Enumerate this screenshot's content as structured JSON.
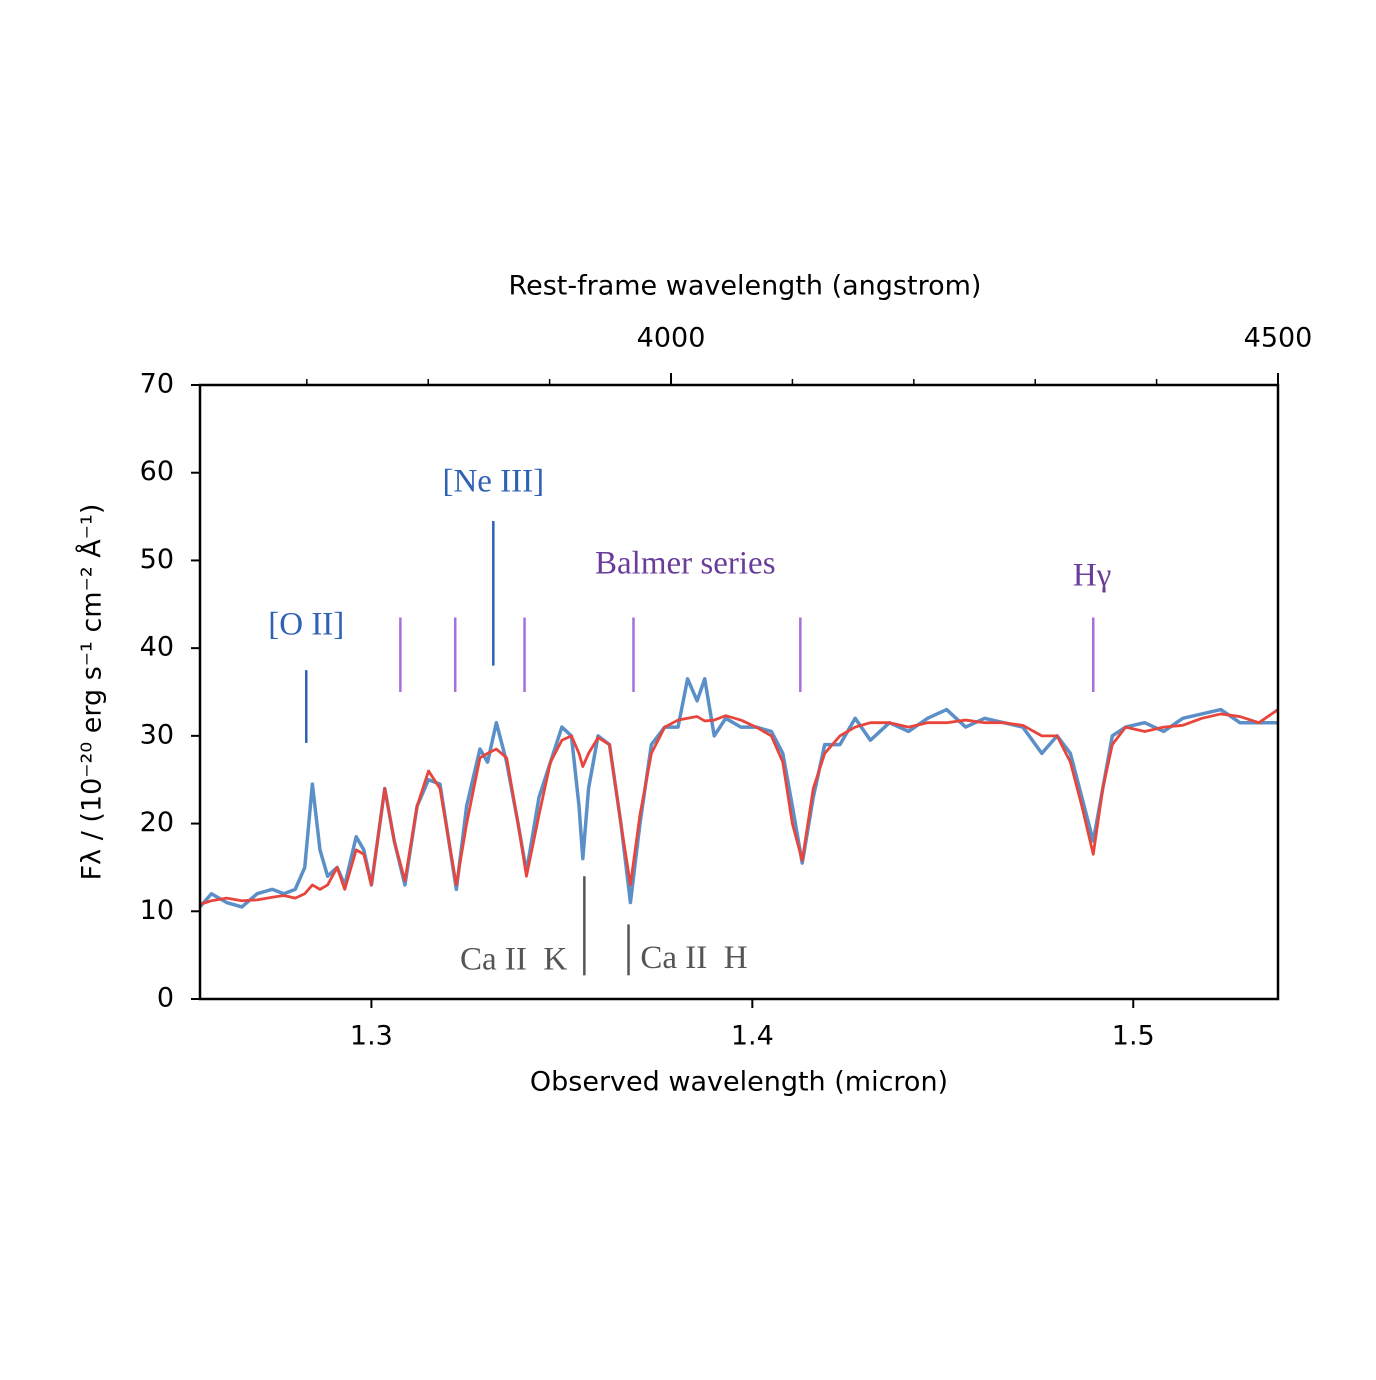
{
  "chart_data": {
    "type": "line",
    "xlabel": "Observed wavelength (micron)",
    "ylabel": "Fλ / (10⁻²⁰ erg s⁻¹ cm⁻² Å⁻¹)",
    "x2label": "Rest-frame wavelength (angstrom)",
    "xlim": [
      1.255,
      1.538
    ],
    "xticks": [
      1.3,
      1.4,
      1.5
    ],
    "ylim": [
      0,
      70
    ],
    "yticks": [
      0,
      10,
      20,
      30,
      40,
      50,
      60,
      70
    ],
    "x2lim": [
      3612,
      4500
    ],
    "x2ticks": [
      4000,
      4500
    ],
    "x2minorticks": [
      3700,
      3800,
      3900,
      4100,
      4200,
      4300,
      4400
    ],
    "x": [
      1.255,
      1.258,
      1.262,
      1.266,
      1.27,
      1.274,
      1.277,
      1.28,
      1.2825,
      1.2845,
      1.2865,
      1.2885,
      1.291,
      1.293,
      1.296,
      1.298,
      1.3,
      1.3035,
      1.306,
      1.3088,
      1.312,
      1.315,
      1.318,
      1.3223,
      1.325,
      1.3285,
      1.3305,
      1.3328,
      1.3355,
      1.3385,
      1.3407,
      1.344,
      1.347,
      1.35,
      1.3525,
      1.3545,
      1.3555,
      1.357,
      1.3595,
      1.3625,
      1.3655,
      1.368,
      1.3705,
      1.3735,
      1.377,
      1.3805,
      1.383,
      1.3855,
      1.3875,
      1.39,
      1.393,
      1.397,
      1.401,
      1.405,
      1.408,
      1.4105,
      1.4131,
      1.416,
      1.419,
      1.423,
      1.427,
      1.431,
      1.436,
      1.441,
      1.446,
      1.451,
      1.456,
      1.461,
      1.466,
      1.471,
      1.476,
      1.48,
      1.4835,
      1.4865,
      1.4895,
      1.492,
      1.4945,
      1.498,
      1.503,
      1.508,
      1.513,
      1.518,
      1.523,
      1.528,
      1.533,
      1.538
    ],
    "series": [
      {
        "color": "#5b8fc7",
        "values": [
          10.5,
          12,
          11,
          10.5,
          12,
          12.5,
          12,
          12.5,
          15,
          24.5,
          17,
          14,
          15,
          13,
          18.5,
          17,
          13,
          24,
          18,
          13,
          22,
          25,
          24.5,
          12.5,
          22,
          28.5,
          27,
          31.5,
          27,
          20,
          14.5,
          23,
          27,
          31,
          30,
          22,
          16,
          24,
          30,
          29,
          20,
          11,
          20,
          29,
          31,
          31,
          36.5,
          34,
          36.5,
          30,
          32,
          31,
          31,
          30.5,
          28,
          22,
          15.5,
          23,
          29,
          29,
          32,
          29.5,
          31.5,
          30.5,
          32,
          33,
          31,
          32,
          31.5,
          31,
          28,
          30,
          28,
          23,
          18,
          24,
          30,
          31,
          31.5,
          30.5,
          32,
          32.5,
          33,
          31.5,
          31.5,
          31.5
        ]
      },
      {
        "color": "#e8453c",
        "values": [
          10.8,
          11.2,
          11.5,
          11.2,
          11.3,
          11.6,
          11.8,
          11.5,
          12,
          13,
          12.5,
          13,
          15,
          12.5,
          17,
          16.5,
          13,
          24,
          18,
          13.5,
          22,
          26,
          24,
          13,
          20,
          27.5,
          28,
          28.5,
          27.5,
          20,
          14,
          21,
          27,
          29.5,
          30,
          28,
          26.5,
          28,
          29.8,
          29,
          20,
          13,
          21,
          28,
          31,
          31.8,
          32,
          32.2,
          31.7,
          31.8,
          32.3,
          31.8,
          31,
          30,
          27,
          20,
          15.8,
          24,
          28,
          30,
          31,
          31.5,
          31.5,
          31,
          31.5,
          31.5,
          31.8,
          31.5,
          31.5,
          31.2,
          30,
          30,
          27,
          22,
          16.5,
          24,
          29,
          31,
          30.5,
          31,
          31.2,
          32,
          32.5,
          32.2,
          31.5,
          33
        ]
      }
    ],
    "markers": [
      {
        "x": 1.2829,
        "y": [
          29.2,
          37.5
        ],
        "color": "#2f62b5"
      },
      {
        "x": 1.332,
        "y": [
          38,
          54.5
        ],
        "color": "#2f62b5"
      },
      {
        "x": 1.3076,
        "y": [
          35,
          43.5
        ],
        "color": "#a570dd"
      },
      {
        "x": 1.322,
        "y": [
          35,
          43.5
        ],
        "color": "#a570dd"
      },
      {
        "x": 1.3402,
        "y": [
          35,
          43.5
        ],
        "color": "#a570dd"
      },
      {
        "x": 1.3688,
        "y": [
          35,
          43.5
        ],
        "color": "#a570dd"
      },
      {
        "x": 1.4126,
        "y": [
          35,
          43.5
        ],
        "color": "#a570dd"
      },
      {
        "x": 1.4895,
        "y": [
          35,
          43.5
        ],
        "color": "#a570dd"
      },
      {
        "x": 1.3559,
        "y": [
          2.7,
          14
        ],
        "color": "#555555"
      },
      {
        "x": 1.3675,
        "y": [
          2.7,
          8.5
        ],
        "color": "#555555"
      }
    ],
    "annotations": [
      {
        "text": "[O II]",
        "x": 1.2829,
        "y": 42.4,
        "color": "#2f62b5",
        "anchor": "middle"
      },
      {
        "text": "[Ne III]",
        "x": 1.332,
        "y": 58.7,
        "color": "#2f62b5",
        "anchor": "middle"
      },
      {
        "text": "Balmer series",
        "x": 1.3824,
        "y": 49.4,
        "color": "#6a3d9a",
        "anchor": "middle"
      },
      {
        "text": "Hγ",
        "x": 1.4892,
        "y": 48,
        "color": "#6a3d9a",
        "anchor": "middle"
      },
      {
        "text": "Ca II  K",
        "x": 1.3514,
        "y": 4.2,
        "color": "#555555",
        "anchor": "end"
      },
      {
        "text": "Ca II  H",
        "x": 1.3706,
        "y": 4.4,
        "color": "#555555",
        "anchor": "start"
      }
    ]
  }
}
